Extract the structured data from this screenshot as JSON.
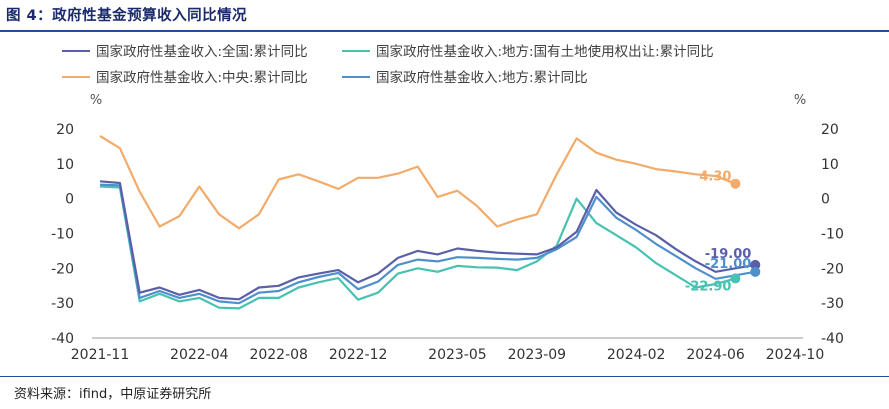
{
  "figure": {
    "title": "图 4：政府性基金预算收入同比情况"
  },
  "source": "资料来源：ifind，中原证券研究所",
  "chart_data": {
    "type": "line",
    "y_unit_left": "%",
    "y_unit_right": "%",
    "ylim": [
      -40,
      20
    ],
    "yticks": [
      20,
      10,
      0,
      -10,
      -20,
      -30,
      -40
    ],
    "x_tick_labels": [
      "2021-11",
      "2022-04",
      "2022-08",
      "2022-12",
      "2023-05",
      "2023-09",
      "2024-02",
      "2024-06",
      "2024-10"
    ],
    "x_tick_index": [
      0,
      5,
      9,
      13,
      18,
      22,
      27,
      31,
      35
    ],
    "legend_layout": "top, two columns",
    "end_labels": [
      "4.30",
      "-19.00",
      "-21.00",
      "-22.90"
    ],
    "series": [
      {
        "name": "国家政府性基金收入:全国:累计同比",
        "color": "#5b5fa8",
        "values": [
          5.0,
          4.5,
          -27.0,
          -25.5,
          -27.6,
          -26.2,
          -28.5,
          -28.9,
          -25.5,
          -25.0,
          -22.6,
          -21.5,
          -20.5,
          -24.0,
          -21.5,
          -17.0,
          -15.0,
          -16.0,
          -14.3,
          -15.0,
          -15.5,
          -15.8,
          -16.0,
          -14.0,
          -9.5,
          2.5,
          -4.0,
          -7.5,
          -10.5,
          -14.5,
          -18.0,
          -21.0,
          -20.0,
          -19.0
        ]
      },
      {
        "name": "国家政府性基金收入:中央:累计同比",
        "color": "#f2ab6a",
        "values": [
          18.0,
          14.5,
          2.0,
          -8.0,
          -5.0,
          3.5,
          -4.5,
          -8.5,
          -4.5,
          5.5,
          7.0,
          5.0,
          2.8,
          6.0,
          6.0,
          7.2,
          9.2,
          0.5,
          2.3,
          -2.2,
          -8.0,
          -6.0,
          -4.5,
          7.0,
          17.3,
          13.2,
          11.2,
          10.0,
          8.5,
          7.8,
          7.0,
          6.5,
          4.3
        ]
      },
      {
        "name": "国家政府性基金收入:地方:国有土地使用权出让:累计同比",
        "color": "#47c2b1",
        "values": [
          3.5,
          3.2,
          -29.5,
          -27.3,
          -29.5,
          -28.5,
          -31.3,
          -31.5,
          -28.5,
          -28.5,
          -25.5,
          -24.0,
          -22.8,
          -29.0,
          -27.0,
          -21.5,
          -20.0,
          -21.0,
          -19.3,
          -19.7,
          -19.8,
          -20.5,
          -18.0,
          -13.5,
          0.0,
          -7.0,
          -10.5,
          -14.0,
          -18.5,
          -22.0,
          -25.5,
          -24.5,
          -22.9
        ]
      },
      {
        "name": "国家政府性基金收入:地方:累计同比",
        "color": "#4e8fcc",
        "values": [
          4.0,
          3.8,
          -28.5,
          -26.5,
          -28.5,
          -27.3,
          -29.5,
          -30.0,
          -27.0,
          -26.5,
          -24.0,
          -22.5,
          -21.3,
          -26.0,
          -23.8,
          -19.0,
          -17.5,
          -18.0,
          -16.8,
          -17.0,
          -17.3,
          -17.5,
          -17.0,
          -14.5,
          -11.0,
          0.5,
          -5.5,
          -9.0,
          -13.0,
          -16.5,
          -20.0,
          -23.0,
          -22.0,
          -21.0
        ]
      }
    ]
  }
}
